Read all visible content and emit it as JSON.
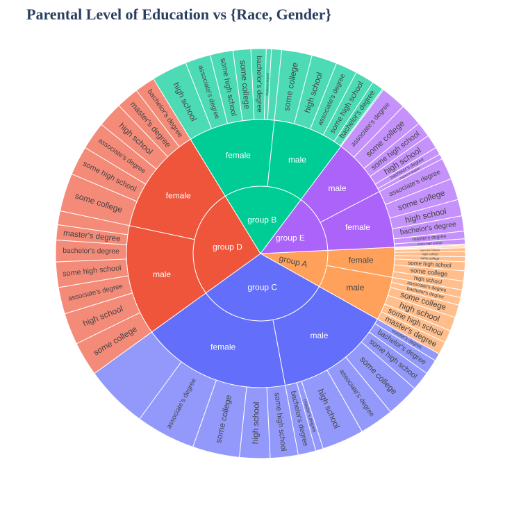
{
  "chart_data": {
    "type": "sunburst",
    "title": "Parental Level of Education vs {Race, Gender}",
    "levels": [
      "race/ethnicity",
      "gender",
      "parental level of education"
    ],
    "start_group": "group A",
    "groups": [
      {
        "name": "group A",
        "color": "#FFA15A",
        "outer_color": "#FFBE8C",
        "children": [
          {
            "name": "female",
            "value": 36,
            "children": [
              {
                "name": "some high school",
                "value": 1
              },
              {
                "name": "master's degree",
                "value": 1
              },
              {
                "name": "bachelor's degree",
                "value": 1
              },
              {
                "name": "associate's degree",
                "value": 3
              },
              {
                "name": "high school",
                "value": 4
              },
              {
                "name": "some college",
                "value": 4
              },
              {
                "name": "some high school",
                "value": 7
              },
              {
                "name": "some college",
                "value": 8
              },
              {
                "name": "high school",
                "value": 7
              }
            ]
          },
          {
            "name": "male",
            "value": 53,
            "children": [
              {
                "name": "associate's degree",
                "value": 6
              },
              {
                "name": "bachelor's degree",
                "value": 6
              },
              {
                "name": "some college",
                "value": 10
              },
              {
                "name": "high school",
                "value": 11
              },
              {
                "name": "some high school",
                "value": 10
              },
              {
                "name": "master's degree",
                "value": 10
              }
            ]
          }
        ]
      },
      {
        "name": "group C",
        "color": "#636EFA",
        "outer_color": "#9399FB",
        "children": [
          {
            "name": "male",
            "value": 139,
            "children": [
              {
                "name": "master's degree",
                "value": 6
              },
              {
                "name": "bachelor's degree",
                "value": 12
              },
              {
                "name": "some high school",
                "value": 15
              },
              {
                "name": "some college",
                "value": 26
              },
              {
                "name": "associate's degree",
                "value": 27
              },
              {
                "name": "high school",
                "value": 33
              },
              {
                "name": "master's degree",
                "value": 6
              },
              {
                "name": "bachelor's degree",
                "value": 14
              }
            ]
          },
          {
            "name": "female",
            "value": 180,
            "children": [
              {
                "name": "some high school",
                "value": 22
              },
              {
                "name": "high school",
                "value": 24
              },
              {
                "name": "some college",
                "value": 37
              },
              {
                "name": "associate's degree",
                "value": 47
              },
              {
                "name": "",
                "value": 50
              }
            ]
          }
        ]
      },
      {
        "name": "group D",
        "color": "#EF553B",
        "outer_color": "#F48A78",
        "children": [
          {
            "name": "male",
            "value": 133,
            "children": [
              {
                "name": "some college",
                "value": 27
              },
              {
                "name": "high school",
                "value": 25
              },
              {
                "name": "associate's degree",
                "value": 21
              },
              {
                "name": "some high school",
                "value": 20
              },
              {
                "name": "bachelor's degree",
                "value": 17
              },
              {
                "name": "master's degree",
                "value": 12
              },
              {
                "name": "",
                "value": 11
              }
            ]
          },
          {
            "name": "female",
            "value": 129,
            "children": [
              {
                "name": "some college",
                "value": 30
              },
              {
                "name": "some high school",
                "value": 23
              },
              {
                "name": "associate's degree",
                "value": 22
              },
              {
                "name": "high school",
                "value": 20
              },
              {
                "name": "master's degree",
                "value": 18
              },
              {
                "name": "bachelor's degree",
                "value": 16
              }
            ]
          }
        ]
      },
      {
        "name": "group B",
        "color": "#00CC96",
        "outer_color": "#4CDBB5",
        "children": [
          {
            "name": "female",
            "value": 104,
            "children": [
              {
                "name": "high school",
                "value": 28
              },
              {
                "name": "associate's degree",
                "value": 20
              },
              {
                "name": "some high school",
                "value": 18
              },
              {
                "name": "some college",
                "value": 14
              },
              {
                "name": "bachelor's degree",
                "value": 12
              },
              {
                "name": "master's degree",
                "value": 4
              },
              {
                "name": "",
                "value": 8
              }
            ]
          },
          {
            "name": "male",
            "value": 86,
            "children": [
              {
                "name": "some college",
                "value": 24
              },
              {
                "name": "high school",
                "value": 20
              },
              {
                "name": "associate's degree",
                "value": 17
              },
              {
                "name": "some high school",
                "value": 15
              },
              {
                "name": "bachelor's degree",
                "value": 9
              },
              {
                "name": "master's degree",
                "value": 1
              }
            ]
          }
        ]
      },
      {
        "name": "group E",
        "color": "#AB63FA",
        "outer_color": "#C592FB",
        "children": [
          {
            "name": "male",
            "value": 71,
            "children": [
              {
                "name": "associate's degree",
                "value": 20
              },
              {
                "name": "some college",
                "value": 18
              },
              {
                "name": "some high school",
                "value": 12
              },
              {
                "name": "high school",
                "value": 11
              },
              {
                "name": "bachelor's degree",
                "value": 6
              },
              {
                "name": "master's degree",
                "value": 4
              }
            ]
          },
          {
            "name": "female",
            "value": 69,
            "children": [
              {
                "name": "associate's degree",
                "value": 17
              },
              {
                "name": "some college",
                "value": 17
              },
              {
                "name": "high school",
                "value": 13
              },
              {
                "name": "bachelor's degree",
                "value": 12
              },
              {
                "name": "master's degree",
                "value": 6
              },
              {
                "name": "some high school",
                "value": 4
              }
            ]
          }
        ]
      }
    ]
  }
}
